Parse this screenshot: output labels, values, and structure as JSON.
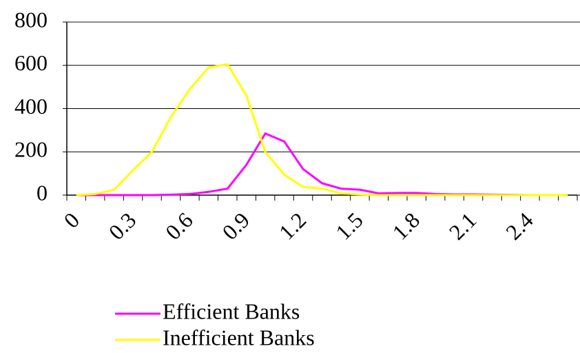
{
  "chart_data": {
    "type": "line",
    "categories": [
      "0",
      null,
      null,
      "0.3",
      null,
      null,
      "0.6",
      null,
      null,
      "0.9",
      null,
      null,
      "1.2",
      null,
      null,
      "1.5",
      null,
      null,
      "1.8",
      null,
      null,
      "2.1",
      null,
      null,
      "2.4",
      null,
      null
    ],
    "series": [
      {
        "name": "Efficient Banks",
        "color": "#ff00ff",
        "values": [
          0,
          0,
          0,
          0,
          0,
          2,
          5,
          15,
          30,
          140,
          285,
          248,
          120,
          55,
          30,
          25,
          8,
          10,
          10,
          5,
          3,
          3,
          2,
          1,
          0,
          0,
          0
        ]
      },
      {
        "name": "Inefficient Banks",
        "color": "#ffff00",
        "values": [
          0,
          5,
          25,
          115,
          200,
          360,
          490,
          590,
          605,
          460,
          200,
          95,
          38,
          30,
          8,
          3,
          0,
          0,
          0,
          0,
          0,
          0,
          0,
          0,
          0,
          0,
          0
        ]
      }
    ],
    "ylim": [
      0,
      800
    ],
    "yticks": [
      0,
      200,
      400,
      600,
      800
    ],
    "grid": true,
    "legend": "bottom"
  }
}
